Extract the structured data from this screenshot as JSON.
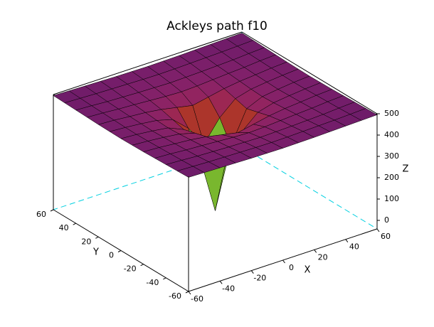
{
  "chart_data": {
    "type": "surface",
    "title": "Ackleys path f10",
    "xlabel": "X",
    "ylabel": "Y",
    "zlabel": "Z",
    "x": [
      -60,
      -50,
      -40,
      -30,
      -20,
      -10,
      0,
      10,
      20,
      30,
      40,
      50,
      60
    ],
    "y": [
      -60,
      -50,
      -40,
      -30,
      -20,
      -10,
      0,
      10,
      20,
      30,
      40,
      50,
      60
    ],
    "z": [
      [
        495,
        493,
        491,
        489,
        487,
        486,
        485,
        486,
        487,
        489,
        491,
        493,
        495
      ],
      [
        493,
        490,
        487,
        485,
        483,
        481,
        480,
        481,
        483,
        485,
        487,
        490,
        493
      ],
      [
        491,
        487,
        482,
        479,
        476,
        474,
        472,
        474,
        476,
        479,
        482,
        487,
        491
      ],
      [
        489,
        485,
        479,
        475,
        470,
        465,
        462,
        465,
        470,
        475,
        479,
        485,
        489
      ],
      [
        487,
        483,
        476,
        470,
        460,
        445,
        430,
        445,
        460,
        470,
        476,
        483,
        487
      ],
      [
        486,
        481,
        474,
        465,
        445,
        380,
        280,
        380,
        445,
        465,
        474,
        481,
        486
      ],
      [
        485,
        480,
        472,
        462,
        430,
        280,
        0,
        280,
        430,
        462,
        472,
        480,
        485
      ],
      [
        486,
        481,
        474,
        465,
        445,
        380,
        280,
        380,
        445,
        465,
        474,
        481,
        486
      ],
      [
        487,
        483,
        476,
        470,
        460,
        445,
        430,
        445,
        460,
        470,
        476,
        483,
        487
      ],
      [
        489,
        485,
        479,
        475,
        470,
        465,
        462,
        465,
        470,
        475,
        479,
        485,
        489
      ],
      [
        491,
        487,
        482,
        479,
        476,
        474,
        472,
        474,
        476,
        479,
        482,
        487,
        491
      ],
      [
        493,
        490,
        487,
        485,
        483,
        481,
        480,
        481,
        483,
        485,
        487,
        490,
        493
      ],
      [
        495,
        493,
        491,
        489,
        487,
        486,
        485,
        486,
        487,
        489,
        491,
        493,
        495
      ]
    ],
    "xlim": [
      -60,
      60
    ],
    "ylim": [
      -60,
      60
    ],
    "zlim": [
      -40,
      500
    ],
    "xticks": [
      -60,
      -40,
      -20,
      0,
      20,
      40,
      60
    ],
    "yticks": [
      -60,
      -40,
      -20,
      0,
      20,
      40,
      60
    ],
    "zticks": [
      0,
      100,
      200,
      300,
      400,
      500
    ]
  }
}
